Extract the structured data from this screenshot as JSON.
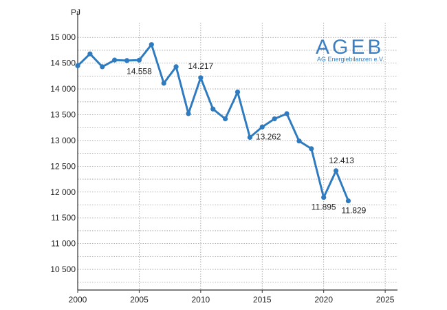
{
  "chart_data": {
    "type": "line",
    "unit": "PJ",
    "x": [
      2000,
      2001,
      2002,
      2003,
      2004,
      2005,
      2006,
      2007,
      2008,
      2009,
      2010,
      2011,
      2012,
      2013,
      2014,
      2015,
      2016,
      2017,
      2018,
      2019,
      2020,
      2021,
      2022
    ],
    "series": [
      {
        "values": [
          14450,
          14680,
          14430,
          14560,
          14550,
          14558,
          14860,
          14110,
          14430,
          13520,
          14217,
          13610,
          13420,
          13940,
          13060,
          13262,
          13420,
          13520,
          12990,
          12840,
          11895,
          12413,
          11829
        ]
      }
    ],
    "xlim": [
      2000,
      2026
    ],
    "ylim": [
      10100,
      15150
    ],
    "x_ticks": [
      "2000",
      "2005",
      "2010",
      "2015",
      "2020",
      "2025"
    ],
    "y_ticks": [
      "10 500",
      "11 000",
      "11 500",
      "12 000",
      "12 500",
      "13 000",
      "13 500",
      "14 000",
      "14 500",
      "15 000"
    ],
    "annotations": [
      {
        "x": 2005,
        "text": "14.558"
      },
      {
        "x": 2010,
        "text": "14.217"
      },
      {
        "x": 2015,
        "text": "13.262"
      },
      {
        "x": 2020,
        "text": "11.895"
      },
      {
        "x": 2021,
        "text": "12.413"
      },
      {
        "x": 2022,
        "text": "11.829"
      }
    ],
    "grid": true,
    "legend": "none"
  },
  "logo": {
    "name": "AGEB",
    "subtitle": "AG Energiebilanzen e.V."
  },
  "colors": {
    "line": "#2f7bbf",
    "logo": "#3a7fc1",
    "grid": "#9a9a9a",
    "axis": "#333333"
  }
}
